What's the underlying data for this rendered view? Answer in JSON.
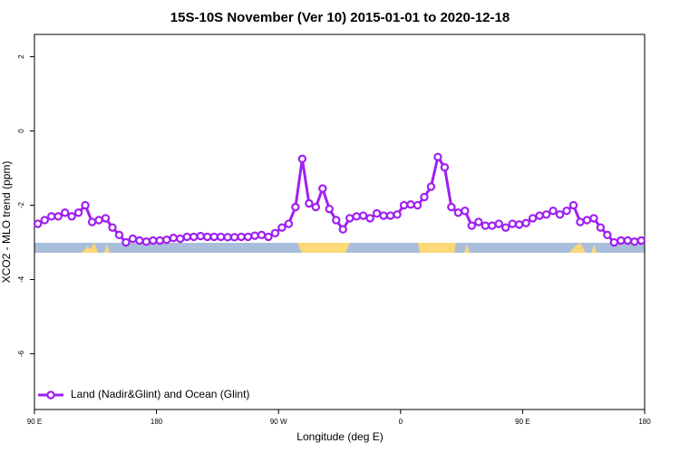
{
  "chart_data": {
    "type": "line",
    "title": "15S-10S November (Ver 10)   2015-01-01 to 2020-12-18",
    "xlabel": "Longitude (deg E)",
    "ylabel": "XCO2 - MLO trend (ppm)",
    "xlim": [
      90,
      540
    ],
    "ylim": [
      -7.5,
      2.6
    ],
    "xticks": [
      {
        "value": 90,
        "label": "90 E"
      },
      180,
      {
        "value": 270,
        "label": "90 W"
      },
      {
        "value": 360,
        "label": "0"
      },
      {
        "value": 450,
        "label": "90 E"
      },
      {
        "value": 540,
        "label": "180"
      }
    ],
    "yticks": [
      2,
      0,
      -2,
      -4,
      -6
    ],
    "grid": false,
    "legend": "bottom-left",
    "x": [
      92.5,
      97.5,
      102.5,
      107.5,
      112.5,
      117.5,
      122.5,
      127.5,
      132.5,
      137.5,
      142.5,
      147.5,
      152.5,
      157.5,
      162.5,
      167.5,
      172.5,
      177.5,
      182.5,
      187.5,
      192.5,
      197.5,
      202.5,
      207.5,
      212.5,
      217.5,
      222.5,
      227.5,
      232.5,
      237.5,
      242.5,
      247.5,
      252.5,
      257.5,
      262.5,
      267.5,
      272.5,
      277.5,
      282.5,
      287.5,
      292.5,
      297.5,
      302.5,
      307.5,
      312.5,
      317.5,
      322.5,
      327.5,
      332.5,
      337.5,
      342.5,
      347.5,
      352.5,
      357.5,
      362.5,
      367.5,
      372.5,
      377.5,
      382.5,
      387.5,
      392.5,
      397.5,
      402.5,
      407.5,
      412.5,
      417.5,
      422.5,
      427.5,
      432.5,
      437.5,
      442.5,
      447.5,
      452.5,
      457.5,
      462.5,
      467.5,
      472.5,
      477.5,
      482.5,
      487.5,
      492.5,
      497.5,
      502.5,
      507.5,
      512.5,
      517.5,
      522.5,
      527.5,
      532.5,
      537.5
    ],
    "series": [
      {
        "name": "Land (Nadir&Glint) and Ocean (Glint)",
        "color": "#a020f0",
        "values": [
          -2.5,
          -2.4,
          -2.3,
          -2.3,
          -2.2,
          -2.3,
          -2.2,
          -2.0,
          -2.45,
          -2.4,
          -2.35,
          -2.6,
          -2.8,
          -3.0,
          -2.9,
          -2.95,
          -2.98,
          -2.95,
          -2.95,
          -2.93,
          -2.88,
          -2.9,
          -2.85,
          -2.85,
          -2.83,
          -2.85,
          -2.85,
          -2.85,
          -2.86,
          -2.86,
          -2.85,
          -2.85,
          -2.82,
          -2.8,
          -2.85,
          -2.75,
          -2.6,
          -2.5,
          -2.05,
          -0.75,
          -1.95,
          -2.05,
          -1.55,
          -2.1,
          -2.4,
          -2.65,
          -2.35,
          -2.3,
          -2.28,
          -2.35,
          -2.22,
          -2.28,
          -2.28,
          -2.25,
          -2.0,
          -1.98,
          -2.0,
          -1.78,
          -1.5,
          -0.7,
          -0.98,
          -2.05,
          -2.2,
          -2.15,
          -2.55,
          -2.45,
          -2.55,
          -2.55,
          -2.5,
          -2.6,
          -2.5,
          -2.52,
          -2.48,
          -2.35,
          -2.28,
          -2.25,
          -2.15,
          -2.25,
          -2.15,
          -2.0,
          -2.45,
          -2.4,
          -2.35,
          -2.6,
          -2.8,
          -3.0,
          -2.95,
          -2.95,
          -2.98,
          -2.95
        ]
      }
    ]
  }
}
